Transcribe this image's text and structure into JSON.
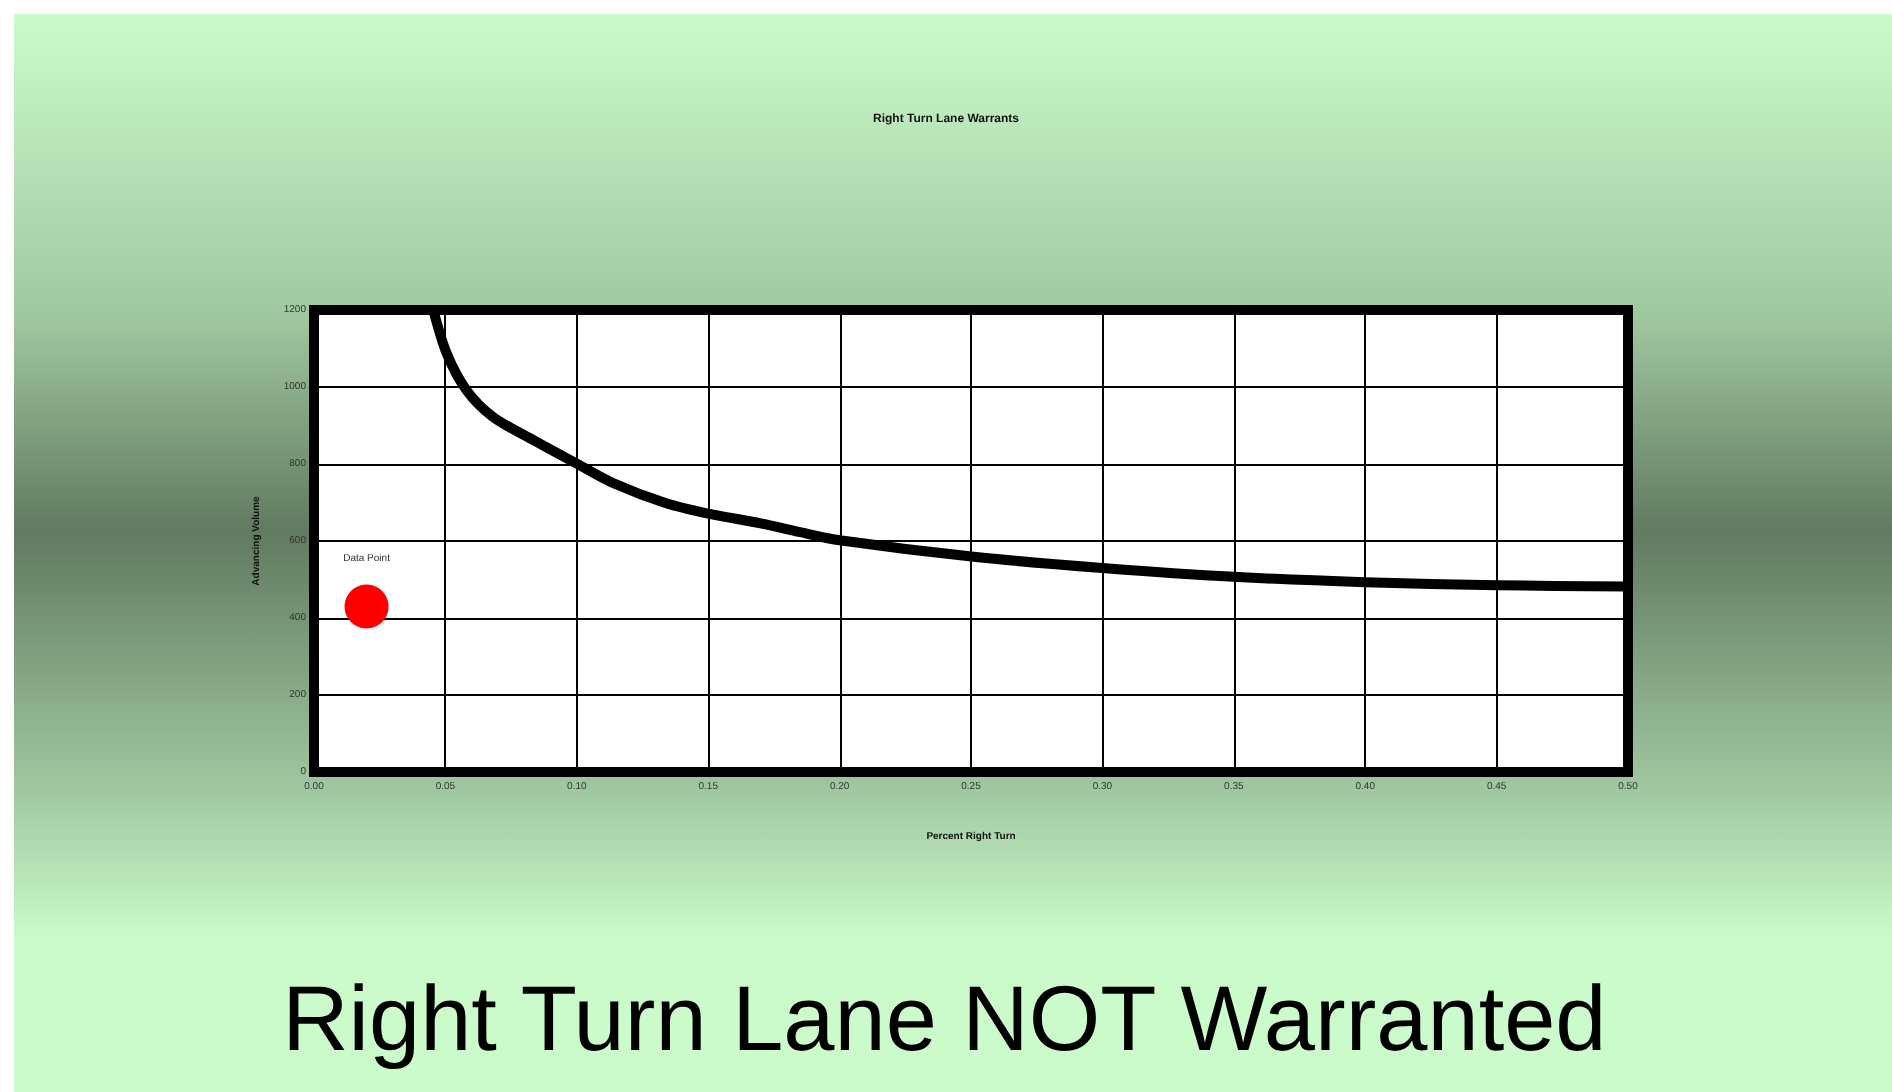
{
  "chart_data": {
    "type": "line",
    "title": "Right Turn Lane Warrants",
    "xlabel": "Percent Right Turn",
    "ylabel": "Advancing Volume",
    "annotations": [
      "Right Turn Lane NOT Warranted"
    ],
    "xlim": [
      0,
      0.5
    ],
    "xticks": [
      {
        "value": 0,
        "label": "0.00"
      },
      {
        "value": 0.05,
        "label": "0.05"
      },
      {
        "value": 0.1,
        "label": "0.10"
      },
      {
        "value": 0.15,
        "label": "0.15"
      },
      {
        "value": 0.2,
        "label": "0.20"
      },
      {
        "value": 0.25,
        "label": "0.25"
      },
      {
        "value": 0.3,
        "label": "0.30"
      },
      {
        "value": 0.35,
        "label": "0.35"
      },
      {
        "value": 0.4,
        "label": "0.40"
      },
      {
        "value": 0.45,
        "label": "0.45"
      },
      {
        "value": 0.5,
        "label": "0.50"
      }
    ],
    "ylim": [
      0,
      1200
    ],
    "yticks": [
      0,
      200,
      400,
      600,
      800,
      1000,
      1200
    ],
    "grid": true,
    "series": [
      {
        "color": "#000000",
        "marker": "none",
        "line_style": "solid",
        "x": [
          0.0454,
          0.0505,
          0.058,
          0.068,
          0.0835,
          0.1,
          0.114,
          0.134,
          0.1495,
          0.17,
          0.185,
          0.2,
          0.251,
          0.3,
          0.35,
          0.4,
          0.45,
          0.5
        ],
        "values": [
          1200,
          1087,
          992,
          923,
          862,
          801,
          750,
          698,
          672,
          646,
          623,
          602,
          559,
          530,
          507,
          493,
          485,
          482
        ]
      },
      {
        "type": "scatter",
        "name": "Data Point",
        "color": "#ff0000",
        "marker": "circle",
        "x": [
          0.02
        ],
        "values": [
          430
        ]
      }
    ]
  }
}
